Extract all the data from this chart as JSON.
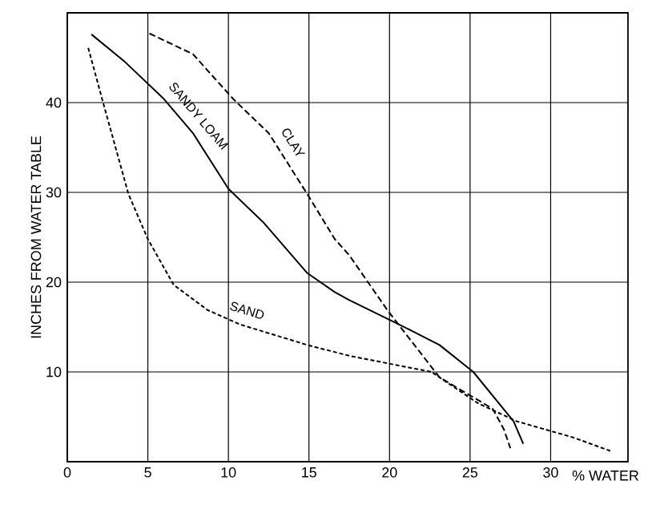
{
  "chart_data": {
    "type": "line",
    "xlabel": "% WATER",
    "ylabel": "INCHES FROM WATER TABLE",
    "xlim": [
      0,
      34.8
    ],
    "ylim": [
      0,
      50
    ],
    "xticks": [
      0,
      5,
      10,
      15,
      20,
      25,
      30
    ],
    "yticks": [
      10,
      20,
      30,
      40
    ],
    "grid": true,
    "series": [
      {
        "name": "CLAY",
        "color": "#000000",
        "line_style": "dashed",
        "x": [
          5.1,
          7.8,
          10.3,
          12.5,
          14.9,
          16.6,
          17.5,
          19.9,
          23.1,
          26.4,
          27.1,
          27.5
        ],
        "values": [
          47.7,
          45.4,
          40.4,
          36.6,
          29.8,
          24.8,
          23,
          16.8,
          9.4,
          5.9,
          3.6,
          1.5
        ]
      },
      {
        "name": "SANDY LOAM",
        "color": "#000000",
        "line_style": "solid",
        "x": [
          1.5,
          3.6,
          6.0,
          7.8,
          10,
          12.2,
          14.9,
          16.6,
          17.5,
          20.8,
          23.1,
          25.2,
          27.7,
          28.3
        ],
        "values": [
          47.6,
          44.5,
          40.4,
          36.6,
          30.4,
          26.6,
          21,
          18.9,
          18,
          15.1,
          13,
          10,
          4.5,
          2
        ]
      },
      {
        "name": "SAND",
        "color": "#000000",
        "line_style": "dotted",
        "x": [
          1.3,
          2.3,
          3.8,
          5,
          6.6,
          8.7,
          10.7,
          14.9,
          17.5,
          22.6,
          25.5,
          27.9,
          31.4,
          33.7
        ],
        "values": [
          46.1,
          39.5,
          29.8,
          24.8,
          19.7,
          16.9,
          15.3,
          13,
          11.8,
          10,
          6.5,
          4.5,
          2.7,
          1.2
        ]
      }
    ]
  }
}
